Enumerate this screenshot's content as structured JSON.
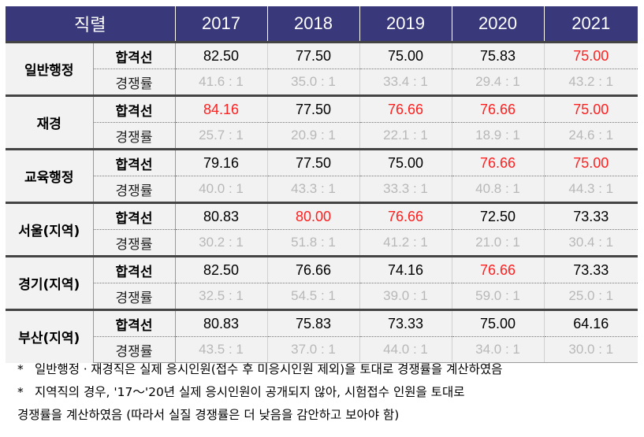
{
  "header": {
    "label": "직렬",
    "years": [
      "2017",
      "2018",
      "2019",
      "2020",
      "2021"
    ]
  },
  "row_labels": {
    "cutoff": "합격선",
    "ratio": "경쟁률"
  },
  "colors": {
    "header_bg": "#38387a",
    "highlight": "#ff2020",
    "ratio_text": "#b8b8b8"
  },
  "groups": [
    {
      "name": "일반행정",
      "cutoff": [
        "82.50",
        "77.50",
        "75.00",
        "75.83",
        "75.00"
      ],
      "cutoff_red": [
        false,
        false,
        false,
        false,
        true
      ],
      "ratio": [
        "41.6 : 1",
        "35.0 : 1",
        "33.4 : 1",
        "29.4 : 1",
        "43.2 : 1"
      ]
    },
    {
      "name": "재경",
      "cutoff": [
        "84.16",
        "77.50",
        "76.66",
        "76.66",
        "75.00"
      ],
      "cutoff_red": [
        true,
        false,
        true,
        true,
        true
      ],
      "ratio": [
        "25.7 : 1",
        "20.9 : 1",
        "22.1 : 1",
        "18.9 : 1",
        "24.6 : 1"
      ]
    },
    {
      "name": "교육행정",
      "cutoff": [
        "79.16",
        "77.50",
        "75.00",
        "76.66",
        "75.00"
      ],
      "cutoff_red": [
        false,
        false,
        false,
        true,
        true
      ],
      "ratio": [
        "40.0 : 1",
        "43.3 : 1",
        "33.3 : 1",
        "40.8 : 1",
        "44.3 : 1"
      ]
    },
    {
      "name": "서울(지역)",
      "cutoff": [
        "80.83",
        "80.00",
        "76.66",
        "72.50",
        "73.33"
      ],
      "cutoff_red": [
        false,
        true,
        true,
        false,
        false
      ],
      "ratio": [
        "30.2 : 1",
        "51.8 : 1",
        "41.2 : 1",
        "21.0 : 1",
        "30.4 : 1"
      ]
    },
    {
      "name": "경기(지역)",
      "cutoff": [
        "82.50",
        "76.66",
        "74.16",
        "76.66",
        "73.33"
      ],
      "cutoff_red": [
        false,
        false,
        false,
        true,
        false
      ],
      "ratio": [
        "32.5 : 1",
        "54.5 : 1",
        "39.0 : 1",
        "59.0 : 1",
        "25.0 : 1"
      ]
    },
    {
      "name": "부산(지역)",
      "cutoff": [
        "80.83",
        "75.83",
        "73.33",
        "75.00",
        "64.16"
      ],
      "cutoff_red": [
        false,
        false,
        false,
        false,
        false
      ],
      "ratio": [
        "43.5 : 1",
        "37.0 : 1",
        "44.0 : 1",
        "34.0 : 1",
        "30.0 : 1"
      ]
    }
  ],
  "notes": [
    {
      "star": "*",
      "lines": [
        "일반행정ㆍ재경직은 실제 응시인원(접수 후 미응시인원 제외)을 토대로 경쟁률을 계산하였음"
      ]
    },
    {
      "star": "*",
      "lines": [
        "지역직의 경우, '17～'20년 실제 응시인원이 공개되지 않아, 시험접수 인원을 토대로",
        "경쟁률을 계산하였음 (따라서 실질 경쟁률은 더 낮음을 감안하고 보아야 함)"
      ]
    }
  ]
}
